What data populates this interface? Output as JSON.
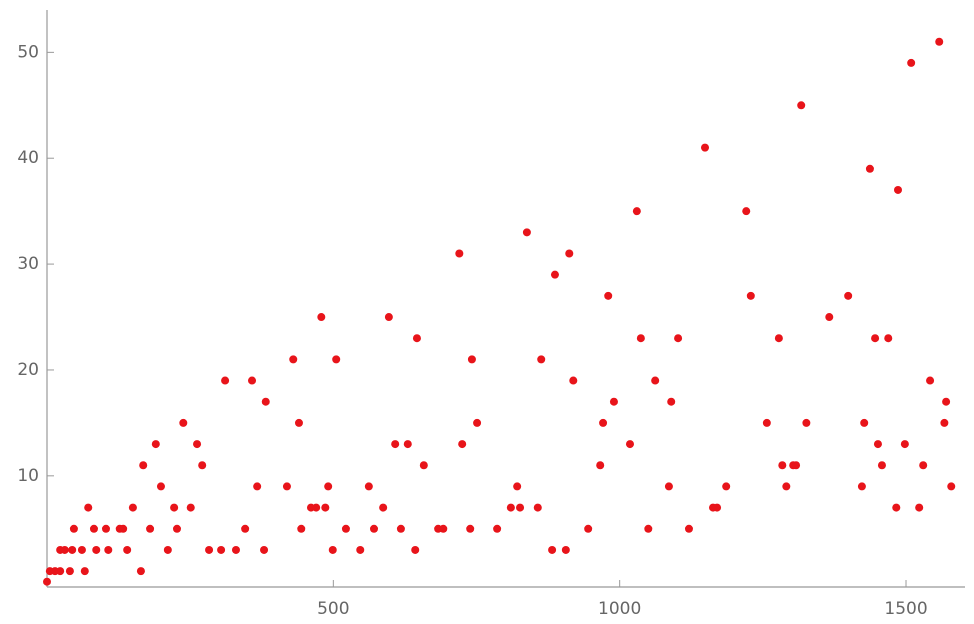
{
  "chart_data": {
    "type": "scatter",
    "color": "#e8141a",
    "xlim": [
      0,
      1603
    ],
    "ylim": [
      -0.5,
      54
    ],
    "xticks": [
      500,
      1000,
      1500
    ],
    "yticks": [
      10,
      20,
      30,
      40,
      50
    ],
    "grid": false,
    "x": [
      0,
      5,
      14,
      23,
      31,
      23,
      40,
      47,
      44,
      61,
      66,
      72,
      82,
      86,
      103,
      107,
      127,
      133,
      140,
      150,
      164,
      168,
      180,
      190,
      199,
      211,
      222,
      227,
      238,
      251,
      262,
      271,
      283,
      304,
      311,
      330,
      346,
      358,
      367,
      379,
      382,
      419,
      430,
      440,
      444,
      461,
      470,
      479,
      486,
      491,
      499,
      505,
      522,
      547,
      562,
      571,
      587,
      597,
      608,
      618,
      630,
      643,
      646,
      658,
      683,
      692,
      720,
      725,
      739,
      742,
      751,
      786,
      810,
      821,
      826,
      838,
      857,
      863,
      882,
      887,
      906,
      912,
      919,
      945,
      966,
      971,
      980,
      990,
      1018,
      1030,
      1037,
      1050,
      1062,
      1086,
      1090,
      1102,
      1121,
      1149,
      1163,
      1170,
      1186,
      1221,
      1229,
      1257,
      1278,
      1284,
      1291,
      1303,
      1308,
      1317,
      1326,
      1366,
      1399,
      1423,
      1427,
      1437,
      1446,
      1451,
      1458,
      1469,
      1483,
      1486,
      1498,
      1509,
      1523,
      1530,
      1542,
      1558,
      1567,
      1570,
      1579
    ],
    "values": [
      0,
      1,
      1,
      3,
      3,
      1,
      1,
      5,
      3,
      3,
      1,
      7,
      5,
      3,
      5,
      3,
      5,
      5,
      3,
      7,
      1,
      11,
      5,
      13,
      9,
      3,
      7,
      5,
      15,
      7,
      13,
      11,
      3,
      3,
      19,
      3,
      5,
      19,
      9,
      3,
      17,
      9,
      21,
      15,
      5,
      7,
      7,
      25,
      7,
      9,
      3,
      21,
      5,
      3,
      9,
      5,
      7,
      25,
      13,
      5,
      13,
      3,
      23,
      11,
      5,
      5,
      31,
      13,
      5,
      21,
      15,
      5,
      7,
      9,
      7,
      33,
      7,
      21,
      3,
      29,
      3,
      31,
      19,
      5,
      11,
      15,
      27,
      17,
      13,
      35,
      23,
      5,
      19,
      9,
      17,
      23,
      5,
      41,
      7,
      7,
      9,
      35,
      27,
      15,
      23,
      11,
      9,
      11,
      11,
      45,
      15,
      25,
      27,
      9,
      15,
      39,
      23,
      13,
      11,
      23,
      7,
      37,
      13,
      49,
      7,
      11,
      19,
      51,
      15,
      17,
      9
    ]
  }
}
